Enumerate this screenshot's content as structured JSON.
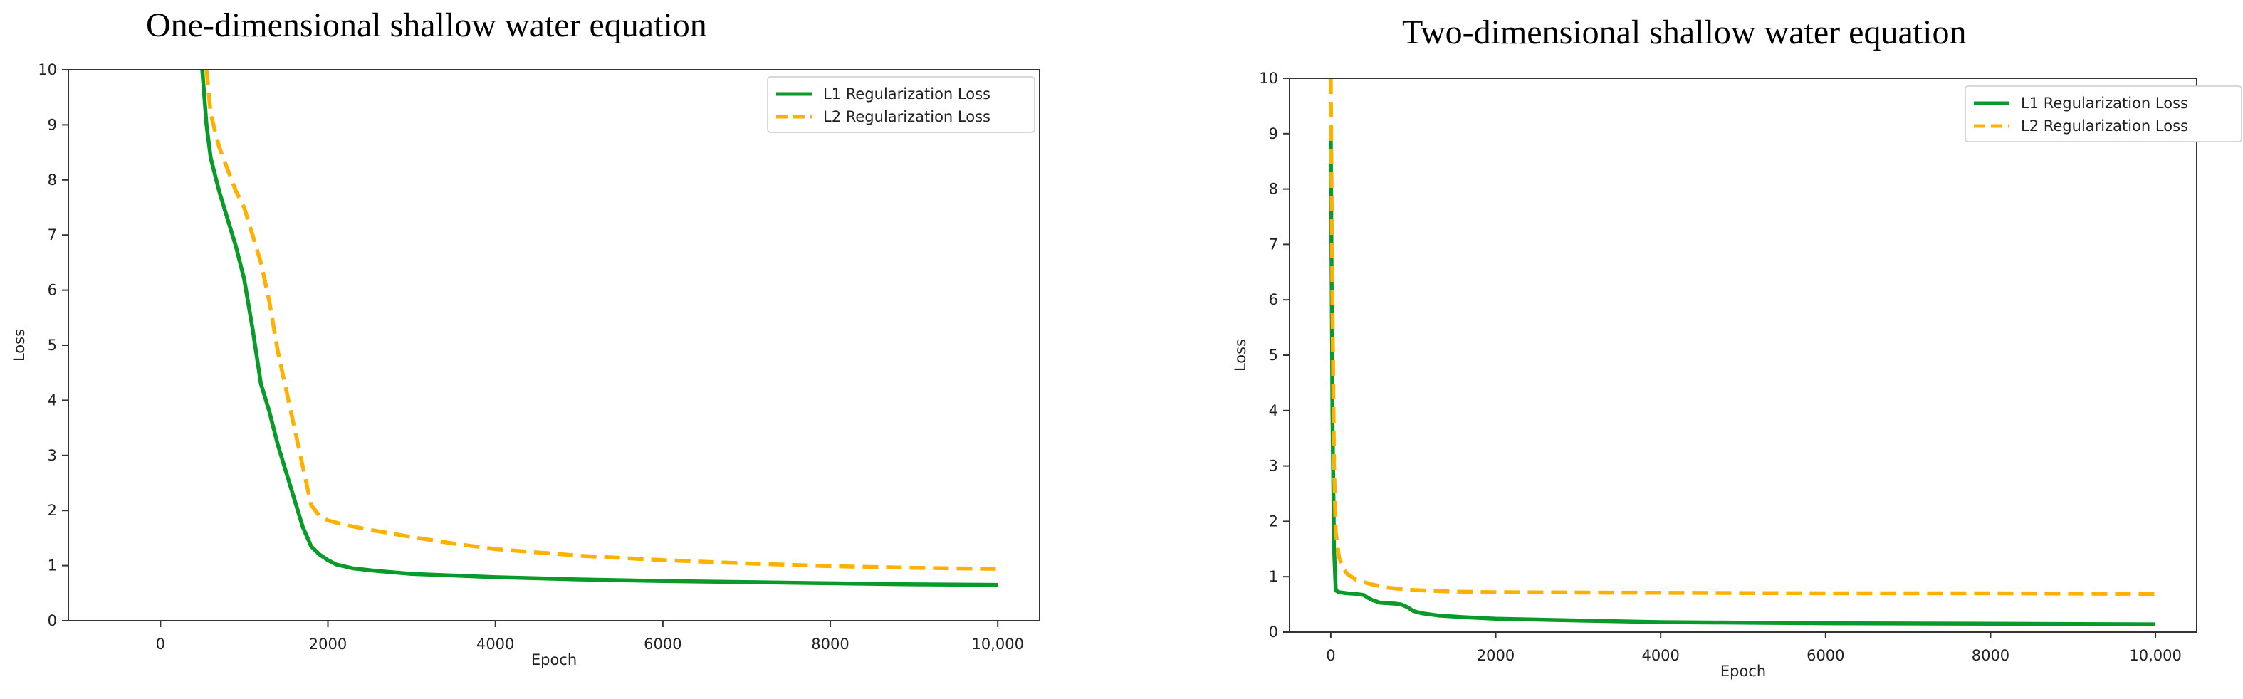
{
  "colors": {
    "l1": "#0a9a2a",
    "l2": "#ffb000"
  },
  "chart_data": [
    {
      "type": "line",
      "title": "One-dimensional shallow water equation",
      "xlabel": "Epoch",
      "ylabel": "Loss",
      "xlim": [
        -1100,
        10500
      ],
      "ylim": [
        0,
        10
      ],
      "xticks": [
        {
          "value": 0,
          "label": "0"
        },
        {
          "value": 2000,
          "label": "2000"
        },
        {
          "value": 4000,
          "label": "4000"
        },
        {
          "value": 6000,
          "label": "6000"
        },
        {
          "value": 8000,
          "label": "8000"
        },
        {
          "value": 10000,
          "label": "10,000"
        }
      ],
      "yticks": [
        0,
        1,
        2,
        3,
        4,
        5,
        6,
        7,
        8,
        9,
        10
      ],
      "legend": "top-right",
      "series": [
        {
          "name": "L1 Regularization Loss",
          "style": "solid",
          "x": [
            500,
            550,
            600,
            700,
            800,
            900,
            1000,
            1100,
            1200,
            1300,
            1400,
            1500,
            1600,
            1700,
            1800,
            1900,
            2000,
            2100,
            2300,
            2600,
            3000,
            3500,
            4000,
            5000,
            6000,
            7000,
            8000,
            9000,
            10000
          ],
          "y": [
            10.0,
            9.0,
            8.4,
            7.8,
            7.3,
            6.8,
            6.2,
            5.3,
            4.3,
            3.8,
            3.2,
            2.7,
            2.2,
            1.7,
            1.35,
            1.2,
            1.1,
            1.02,
            0.95,
            0.9,
            0.85,
            0.82,
            0.79,
            0.75,
            0.72,
            0.7,
            0.68,
            0.66,
            0.65
          ]
        },
        {
          "name": "L2 Regularization Loss",
          "style": "dashed",
          "x": [
            550,
            600,
            700,
            800,
            900,
            1000,
            1100,
            1200,
            1300,
            1400,
            1500,
            1600,
            1700,
            1800,
            1900,
            2000,
            2200,
            2500,
            3000,
            3500,
            4000,
            5000,
            6000,
            7000,
            8000,
            9000,
            10000
          ],
          "y": [
            10.0,
            9.2,
            8.6,
            8.2,
            7.8,
            7.5,
            7.0,
            6.5,
            5.8,
            4.9,
            4.2,
            3.5,
            2.8,
            2.1,
            1.9,
            1.82,
            1.74,
            1.65,
            1.52,
            1.4,
            1.3,
            1.18,
            1.1,
            1.04,
            0.99,
            0.96,
            0.94
          ]
        }
      ]
    },
    {
      "type": "line",
      "title": "Two-dimensional shallow water equation",
      "xlabel": "Epoch",
      "ylabel": "Loss",
      "xlim": [
        -500,
        10500
      ],
      "ylim": [
        0,
        10
      ],
      "xticks": [
        {
          "value": 0,
          "label": "0"
        },
        {
          "value": 2000,
          "label": "2000"
        },
        {
          "value": 4000,
          "label": "4000"
        },
        {
          "value": 6000,
          "label": "6000"
        },
        {
          "value": 8000,
          "label": "8000"
        },
        {
          "value": 10000,
          "label": "10,000"
        }
      ],
      "yticks": [
        0,
        1,
        2,
        3,
        4,
        5,
        6,
        7,
        8,
        9,
        10
      ],
      "legend": "top-right",
      "series": [
        {
          "name": "L1 Regularization Loss",
          "style": "solid",
          "x": [
            0,
            20,
            40,
            60,
            100,
            200,
            300,
            400,
            450,
            500,
            600,
            700,
            800,
            850,
            900,
            950,
            1000,
            1100,
            1300,
            1600,
            2000,
            3000,
            4000,
            6000,
            8000,
            10000
          ],
          "y": [
            9.0,
            4.0,
            1.5,
            0.75,
            0.72,
            0.7,
            0.69,
            0.67,
            0.62,
            0.58,
            0.53,
            0.52,
            0.51,
            0.5,
            0.47,
            0.43,
            0.38,
            0.34,
            0.3,
            0.27,
            0.24,
            0.21,
            0.18,
            0.16,
            0.15,
            0.14
          ]
        },
        {
          "name": "L2 Regularization Loss",
          "style": "dashed",
          "x": [
            0,
            20,
            40,
            60,
            100,
            150,
            200,
            300,
            500,
            700,
            1000,
            1500,
            2000,
            4000,
            6000,
            8000,
            10000
          ],
          "y": [
            10.0,
            6.0,
            3.0,
            1.8,
            1.35,
            1.15,
            1.05,
            0.95,
            0.86,
            0.8,
            0.76,
            0.73,
            0.72,
            0.71,
            0.7,
            0.7,
            0.69
          ]
        }
      ]
    }
  ]
}
